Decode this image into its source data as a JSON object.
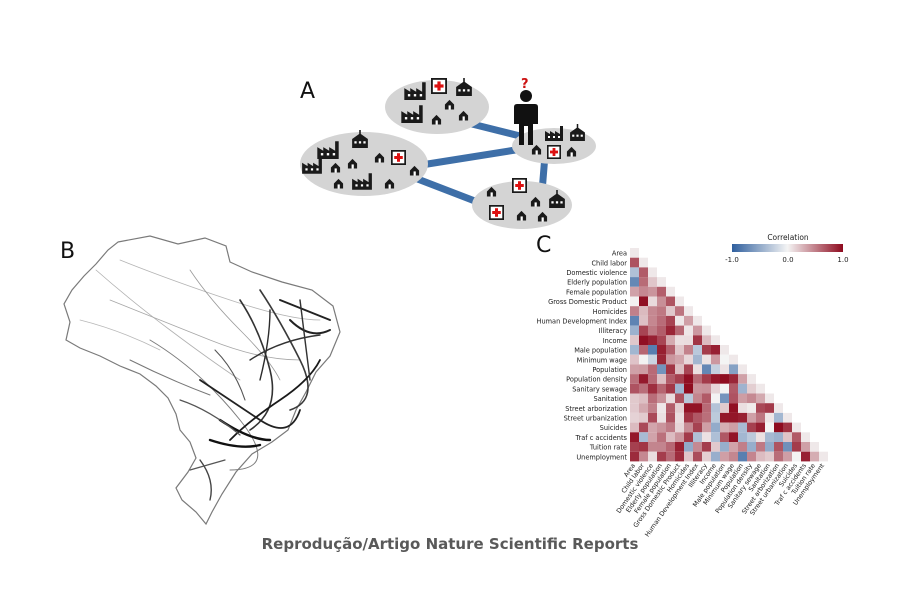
{
  "figure": {
    "panels": {
      "a": "A",
      "b": "B",
      "c": "C"
    },
    "caption": "Reprodução/Artigo Nature Scientific Reports",
    "question_mark": "?"
  },
  "heatmap": {
    "legend_title": "Correlation",
    "legend_ticks": [
      "-1.0",
      "0.0",
      "1.0"
    ],
    "colors": {
      "negative": "#2f5f9e",
      "zero": "#f4f4f4",
      "positive": "#8e0a1e"
    },
    "variables": [
      "Area",
      "Child labor",
      "Domestic violence",
      "Elderly population",
      "Female population",
      "Gross Domestic Product",
      "Homicides",
      "Human Development Index",
      "Illiteracy",
      "Income",
      "Male population",
      "Minimum wage",
      "Population",
      "Population density",
      "Sanitary sewage",
      "Sanitation",
      "Street arborization",
      "Street urbanization",
      "Suicides",
      "Traf c accidents",
      "Tuition rate",
      "Unemployment"
    ]
  },
  "chart_data": {
    "type": "heatmap",
    "legend_title": "Correlation",
    "scale": [
      -1.0,
      1.0
    ],
    "labels": [
      "Area",
      "Child labor",
      "Domestic violence",
      "Elderly population",
      "Female population",
      "Gross Domestic Product",
      "Homicides",
      "Human Development Index",
      "Illiteracy",
      "Income",
      "Male population",
      "Minimum wage",
      "Population",
      "Population density",
      "Sanitary sewage",
      "Sanitation",
      "Street arborization",
      "Street urbanization",
      "Suicides",
      "Traf c accidents",
      "Tuition rate",
      "Unemployment"
    ]
  }
}
